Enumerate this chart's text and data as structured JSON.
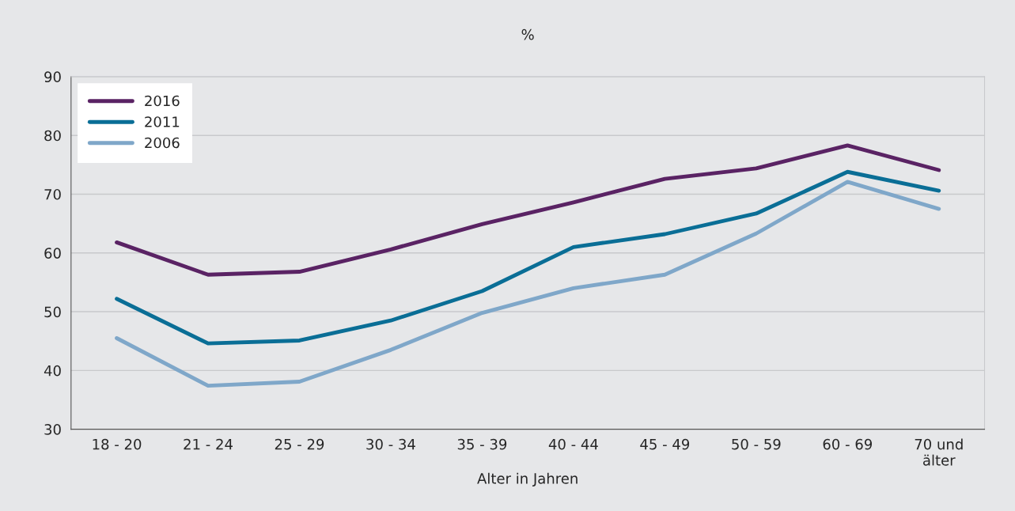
{
  "chart_data": {
    "type": "line",
    "ylabel": "%",
    "xlabel": "Alter in Jahren",
    "categories": [
      "18 - 20",
      "21 - 24",
      "25 - 29",
      "30 - 34",
      "35 - 39",
      "40 - 44",
      "45 - 49",
      "50 - 59",
      "60 - 69",
      "70 und\nälter"
    ],
    "series": [
      {
        "name": "2016",
        "color": "#5a2364",
        "values": [
          61.8,
          56.3,
          56.8,
          60.6,
          64.9,
          68.6,
          72.6,
          74.4,
          78.3,
          74.1
        ]
      },
      {
        "name": "2011",
        "color": "#0a6e96",
        "values": [
          52.2,
          44.6,
          45.1,
          48.5,
          53.5,
          61.0,
          63.2,
          66.7,
          73.8,
          70.6
        ]
      },
      {
        "name": "2006",
        "color": "#7fa7c9",
        "values": [
          45.5,
          37.4,
          38.1,
          43.5,
          49.8,
          54.0,
          56.3,
          63.3,
          72.1,
          67.5
        ]
      }
    ],
    "ylim": [
      30,
      90
    ],
    "yticks": [
      30,
      40,
      50,
      60,
      70,
      80,
      90
    ],
    "grid": "y",
    "legend": "top left",
    "marker": "none",
    "line_style": "solid"
  }
}
